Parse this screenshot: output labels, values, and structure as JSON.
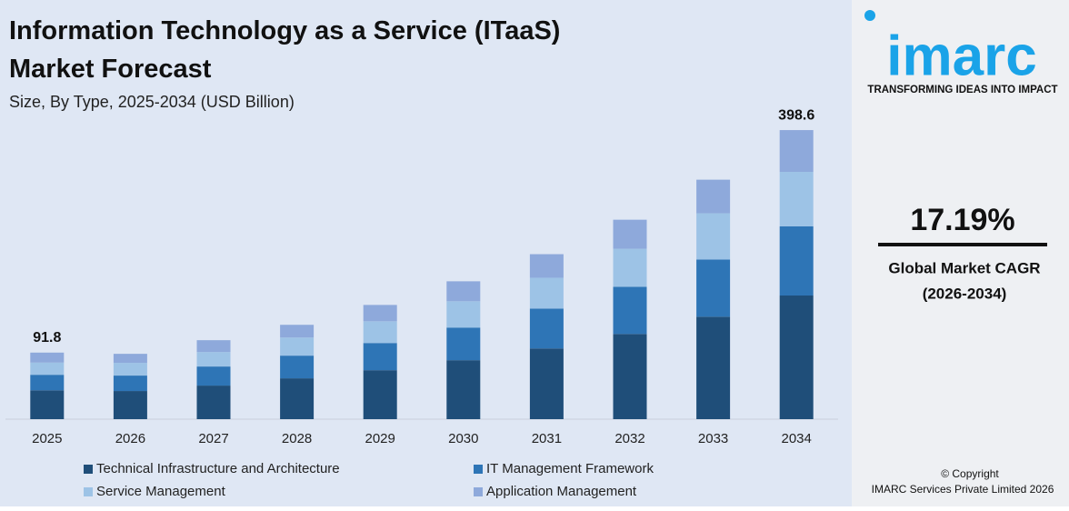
{
  "chart_data": {
    "type": "stacked_bar",
    "title": "Information Technology as a Service (ITaaS) Market Forecast",
    "subtitle": "Size, By Type, 2025-2034 (USD Billion)",
    "categories": [
      "2025",
      "2026",
      "2027",
      "2028",
      "2029",
      "2030",
      "2031",
      "2032",
      "2033",
      "2034"
    ],
    "series": [
      {
        "name": "Technical Infrastructure and Architecture",
        "color": "#1f4e79",
        "values": [
          39.8,
          38.8,
          46.3,
          56.3,
          67.5,
          81.3,
          97.5,
          117.5,
          141.3,
          170.5
        ]
      },
      {
        "name": "IT Management Framework",
        "color": "#2e75b6",
        "values": [
          21.4,
          21.3,
          26.3,
          31.3,
          37.5,
          45,
          55,
          65,
          78.8,
          95.3
        ]
      },
      {
        "name": "Service Management",
        "color": "#9dc3e6",
        "values": [
          16.8,
          17.5,
          20,
          25,
          30,
          36.3,
          42.5,
          52.5,
          63.8,
          75.2
        ]
      },
      {
        "name": "Application Management",
        "color": "#8ea9db",
        "values": [
          13.8,
          12.5,
          16.3,
          17.5,
          22.5,
          27.5,
          32.5,
          40,
          46.3,
          57.6
        ]
      }
    ],
    "totals": [
      91.8,
      null,
      null,
      null,
      null,
      null,
      null,
      null,
      null,
      398.6
    ],
    "ylim": [
      0,
      420
    ],
    "grid": false,
    "legend": "bottom"
  },
  "sidebar": {
    "logo": "imarc",
    "tagline": "TRANSFORMING IDEAS INTO IMPACT",
    "cagr": "17.19%",
    "cagr_label": "Global Market CAGR",
    "cagr_period": "(2026-2034)",
    "copyright": "© Copyright",
    "company": "IMARC Services Private Limited 2026"
  }
}
